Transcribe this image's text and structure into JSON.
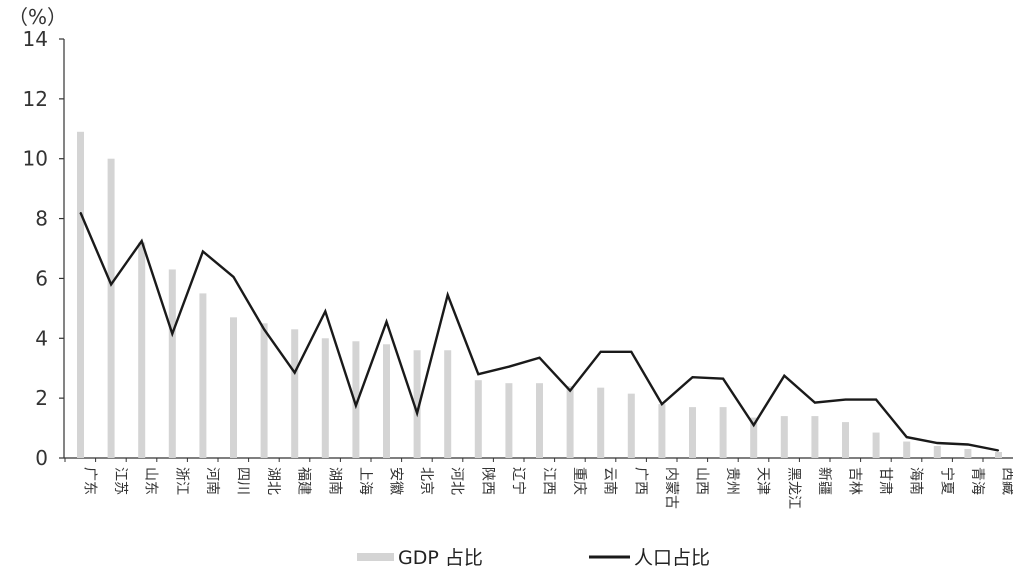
{
  "chart_data": {
    "type": "bar",
    "y_unit_label": "（%）",
    "ylim": [
      0,
      14
    ],
    "yticks": [
      0,
      2,
      4,
      6,
      8,
      10,
      12,
      14
    ],
    "grid": false,
    "legend_position": "bottom-center",
    "categories": [
      "广东",
      "江苏",
      "山东",
      "浙江",
      "河南",
      "四川",
      "湖北",
      "福建",
      "湖南",
      "上海",
      "安徽",
      "北京",
      "河北",
      "陕西",
      "辽宁",
      "江西",
      "重庆",
      "云南",
      "广西",
      "内蒙古",
      "山西",
      "贵州",
      "天津",
      "黑龙江",
      "新疆",
      "吉林",
      "甘肃",
      "海南",
      "宁夏",
      "青海",
      "西藏"
    ],
    "series": [
      {
        "name": "GDP 占比",
        "type": "bar",
        "color": "#d4d4d4",
        "values": [
          10.9,
          10.0,
          7.2,
          6.3,
          5.5,
          4.7,
          4.5,
          4.3,
          4.0,
          3.9,
          3.8,
          3.6,
          3.6,
          2.6,
          2.5,
          2.5,
          2.4,
          2.35,
          2.15,
          1.8,
          1.7,
          1.7,
          1.35,
          1.4,
          1.4,
          1.2,
          0.85,
          0.55,
          0.4,
          0.3,
          0.2
        ]
      },
      {
        "name": "人口占比",
        "type": "line",
        "color": "#1a1a1a",
        "values": [
          8.2,
          5.8,
          7.25,
          4.15,
          6.9,
          6.05,
          4.3,
          2.85,
          4.9,
          1.75,
          4.55,
          1.5,
          5.45,
          2.8,
          3.05,
          3.35,
          2.25,
          3.55,
          3.55,
          1.8,
          2.7,
          2.65,
          1.1,
          2.75,
          1.85,
          1.95,
          1.95,
          0.7,
          0.5,
          0.45,
          0.25
        ]
      }
    ]
  }
}
